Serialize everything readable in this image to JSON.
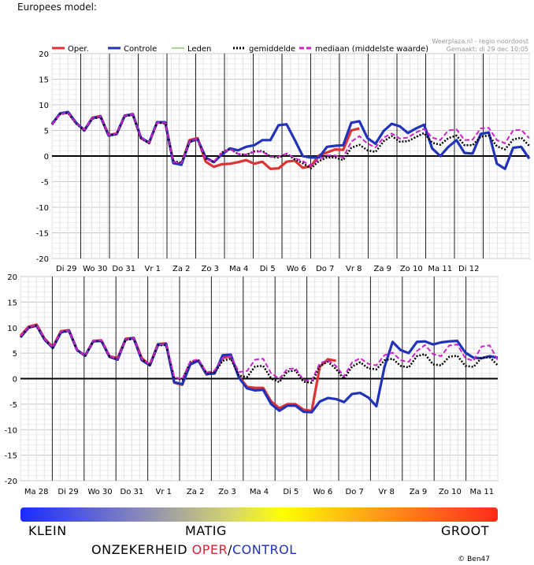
{
  "page": {
    "title": "Europees model:"
  },
  "credits": {
    "source": "Weerplaza.nl - regio noordoost",
    "made": "Gemaakt: di 29 dec 10:05",
    "author": "© Ben47"
  },
  "legend": [
    {
      "label": "Oper.",
      "color": "#dd3333"
    },
    {
      "label": "Controle",
      "color": "#2233bb"
    },
    {
      "label": "Leden",
      "color": "#88cc66"
    },
    {
      "label": "gemiddelde",
      "color": "#000000"
    },
    {
      "label": "mediaan (middelste waarde)",
      "color": "#cc22cc"
    }
  ],
  "scale": {
    "low": "KLEIN",
    "mid": "MATIG",
    "high": "GROOT",
    "caption_a": "ONZEKERHEID ",
    "caption_b": "OPER",
    "caption_c": "/",
    "caption_d": "CONTROL"
  },
  "chart_data": [
    {
      "type": "line",
      "ylim": [
        -20,
        20
      ],
      "yticks": [
        -20,
        -15,
        -10,
        -5,
        0,
        5,
        10,
        15,
        20
      ],
      "day_labels": [
        "Di 29",
        "Wo 30",
        "Do 31",
        "Vr 1",
        "Za 2",
        "Zo 3",
        "Ma 4",
        "Di 5",
        "Wo 6",
        "Do 7",
        "Vr 8",
        "Za 9",
        "Zo 10",
        "Ma 11",
        "Di 12"
      ],
      "series": [
        {
          "name": "Oper.",
          "color": "#dd3333",
          "values": [
            6.2,
            8.3,
            8.5,
            6.4,
            5.1,
            7.5,
            7.8,
            4.1,
            4.4,
            7.9,
            8.2,
            3.5,
            2.6,
            6.6,
            6.5,
            -1.2,
            -1.6,
            3.1,
            3.5,
            -1.1,
            -2.1,
            -1.6,
            -1.5,
            -1.2,
            -0.8,
            -1.5,
            -1.1,
            -2.5,
            -2.4,
            -1.1,
            -0.9,
            -2.3,
            -2.0,
            0.1,
            0.7,
            1.3,
            1.2,
            5.0,
            5.4
          ]
        },
        {
          "name": "Controle",
          "color": "#2233bb",
          "values": [
            6.3,
            8.3,
            8.6,
            6.5,
            5.0,
            7.4,
            7.7,
            4.0,
            4.3,
            7.9,
            8.1,
            3.6,
            2.6,
            6.6,
            6.6,
            -1.4,
            -1.7,
            2.8,
            3.3,
            -0.3,
            -1.2,
            0.3,
            1.5,
            1.1,
            1.8,
            2.1,
            3.1,
            3.1,
            6.0,
            6.2,
            3.2,
            0.0,
            -0.3,
            -0.3,
            1.8,
            2.0,
            2.1,
            6.5,
            6.8,
            3.5,
            2.4,
            4.9,
            6.3,
            5.8,
            4.5,
            5.4,
            6.1,
            1.5,
            0.0,
            1.8,
            3.1,
            0.6,
            0.5,
            4.3,
            4.6,
            -1.5,
            -2.5,
            1.6,
            1.8,
            -0.5
          ]
        },
        {
          "name": "gemiddelde",
          "color": "#000000",
          "values": [
            6.1,
            8.2,
            8.4,
            6.3,
            5.0,
            7.3,
            7.6,
            4.0,
            4.3,
            7.8,
            8.0,
            3.5,
            2.5,
            6.5,
            6.4,
            -1.0,
            -1.3,
            2.7,
            3.3,
            -0.5,
            -1.2,
            0.7,
            1.4,
            0.4,
            0.2,
            0.9,
            1.0,
            -0.1,
            -0.3,
            0.4,
            -0.6,
            -1.4,
            -2.4,
            -1.0,
            -0.3,
            -0.3,
            -0.8,
            1.6,
            2.2,
            1.1,
            0.8,
            2.9,
            3.9,
            2.8,
            2.9,
            3.7,
            4.5,
            2.6,
            2.2,
            3.5,
            4.0,
            2.1,
            2.1,
            3.8,
            4.0,
            1.9,
            1.3,
            3.2,
            3.6,
            2.0
          ]
        },
        {
          "name": "mediaan (middelste waarde)",
          "color": "#cc22cc",
          "values": [
            6.2,
            8.2,
            8.5,
            6.4,
            5.1,
            7.4,
            7.7,
            4.1,
            4.4,
            7.9,
            8.1,
            3.6,
            2.6,
            6.5,
            6.5,
            -1.1,
            -1.4,
            2.8,
            3.4,
            -0.6,
            -1.1,
            0.6,
            1.4,
            0.4,
            0.3,
            0.8,
            0.9,
            -0.2,
            -0.1,
            0.5,
            -0.4,
            -1.0,
            -1.9,
            -0.6,
            0.1,
            0.1,
            -0.3,
            2.8,
            3.9,
            2.4,
            1.7,
            3.6,
            4.4,
            3.4,
            3.6,
            4.6,
            5.3,
            3.6,
            3.1,
            5.0,
            5.2,
            3.1,
            3.2,
            5.4,
            5.5,
            3.1,
            2.5,
            5.0,
            5.1,
            3.5
          ]
        }
      ]
    },
    {
      "type": "line",
      "ylim": [
        -20,
        20
      ],
      "yticks": [
        -20,
        -15,
        -10,
        -5,
        0,
        5,
        10,
        15,
        20
      ],
      "day_labels": [
        "Ma 28",
        "Di 29",
        "Wo 30",
        "Do 31",
        "Vr 1",
        "Za 2",
        "Zo 3",
        "Ma 4",
        "Di 5",
        "Wo 6",
        "Do 7",
        "Vr 8",
        "Za 9",
        "Zo 10",
        "Ma 11"
      ],
      "series": [
        {
          "name": "Oper.",
          "color": "#dd3333",
          "values": [
            8.4,
            10.2,
            10.6,
            7.8,
            6.2,
            9.3,
            9.5,
            5.6,
            4.5,
            7.4,
            7.5,
            4.4,
            4.0,
            7.8,
            8.0,
            4.0,
            2.7,
            6.8,
            6.9,
            -0.8,
            -1.2,
            3.0,
            3.5,
            0.8,
            1.2,
            4.1,
            4.4,
            0.4,
            -1.6,
            -1.8,
            -1.8,
            -4.5,
            -5.8,
            -5.0,
            -5.0,
            -6.1,
            -6.3,
            2.3,
            3.8,
            3.5
          ]
        },
        {
          "name": "Controle",
          "color": "#2233bb",
          "values": [
            8.1,
            10.0,
            10.4,
            7.6,
            6.0,
            9.1,
            9.4,
            5.6,
            4.5,
            7.3,
            7.4,
            4.3,
            3.7,
            7.7,
            7.9,
            3.6,
            2.6,
            6.6,
            6.8,
            -0.7,
            -1.1,
            2.8,
            3.5,
            0.9,
            1.0,
            4.6,
            4.7,
            0.2,
            -1.9,
            -2.3,
            -2.2,
            -5.0,
            -6.3,
            -5.3,
            -5.3,
            -6.5,
            -6.6,
            -4.5,
            -3.8,
            -4.0,
            -4.6,
            -3.0,
            -2.8,
            -3.7,
            -5.4,
            2.3,
            7.2,
            5.6,
            5.0,
            7.2,
            7.3,
            6.7,
            7.1,
            7.3,
            7.4,
            5.1,
            4.1,
            4.0,
            4.4,
            4.1
          ]
        },
        {
          "name": "gemiddelde",
          "color": "#000000",
          "values": [
            8.2,
            10.0,
            10.4,
            7.6,
            6.1,
            9.1,
            9.3,
            5.5,
            4.5,
            7.3,
            7.4,
            4.3,
            3.8,
            7.6,
            7.8,
            3.8,
            2.7,
            6.5,
            6.6,
            0.2,
            -0.2,
            3.3,
            3.7,
            1.1,
            1.2,
            3.5,
            3.9,
            0.6,
            0.3,
            2.4,
            2.5,
            0.0,
            -0.7,
            1.4,
            1.6,
            -0.6,
            -0.8,
            2.5,
            3.3,
            1.9,
            -0.1,
            2.4,
            3.2,
            2.0,
            1.8,
            3.6,
            3.9,
            2.5,
            2.2,
            4.4,
            4.8,
            2.8,
            2.6,
            4.3,
            4.5,
            2.5,
            2.3,
            4.1,
            4.2,
            2.6
          ]
        },
        {
          "name": "mediaan (middelste waarde)",
          "color": "#cc22cc",
          "values": [
            8.3,
            10.1,
            10.5,
            7.7,
            6.1,
            9.2,
            9.4,
            5.6,
            4.5,
            7.4,
            7.5,
            4.4,
            3.8,
            7.7,
            7.9,
            3.8,
            2.8,
            6.6,
            6.8,
            0.3,
            -0.1,
            3.4,
            3.8,
            1.2,
            1.6,
            4.1,
            4.4,
            1.3,
            1.5,
            3.7,
            3.9,
            1.0,
            0.0,
            1.9,
            2.0,
            -0.3,
            -0.4,
            3.0,
            3.6,
            2.5,
            0.4,
            3.2,
            4.0,
            2.9,
            2.6,
            4.6,
            5.1,
            3.6,
            3.3,
            5.4,
            6.6,
            4.8,
            4.4,
            6.5,
            6.7,
            4.0,
            3.5,
            6.3,
            6.5,
            3.6
          ]
        }
      ]
    }
  ]
}
